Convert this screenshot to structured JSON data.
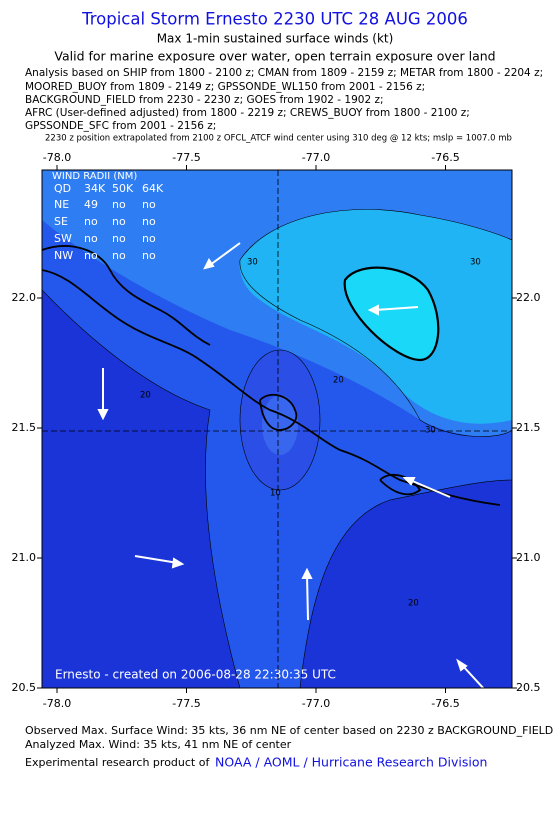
{
  "header": {
    "title": "Tropical Storm Ernesto 2230 UTC 28 AUG 2006",
    "subtitle": "Max 1-min sustained surface winds (kt)",
    "validity": "Valid for marine exposure over water, open terrain exposure over land",
    "sources": [
      "Analysis based on  SHIP from 1800 - 2100 z;  CMAN from 1809 - 2159 z;  METAR from 1800 - 2204 z;",
      "MOORED_BUOY from 1809 - 2149 z;  GPSSONDE_WL150 from 2001 - 2156 z;",
      "BACKGROUND_FIELD from 2230 - 2230 z;  GOES from 1902 - 1902 z;",
      "AFRC (User-defined adjusted) from 1800 - 2219 z;  CREWS_BUOY from 1800 - 2100 z;",
      "GPSSONDE_SFC from 2001 - 2156 z;"
    ],
    "position_note": "2230 z position extrapolated from 2100 z OFCL_ATCF wind center using 310 deg @ 12 kts; mslp = 1007.0 mb"
  },
  "map": {
    "xticks": [
      {
        "value": -78.0,
        "label": "-78.0"
      },
      {
        "value": -77.5,
        "label": "-77.5"
      },
      {
        "value": -77.0,
        "label": "-77.0"
      },
      {
        "value": -76.5,
        "label": "-76.5"
      }
    ],
    "yticks": [
      {
        "value": 22.0,
        "label": "22.0"
      },
      {
        "value": 21.5,
        "label": "21.5"
      },
      {
        "value": 21.0,
        "label": "21.0"
      },
      {
        "value": 20.5,
        "label": "20.5"
      }
    ],
    "wind_radii": {
      "title": "WIND RADII (NM)",
      "header": [
        "QD",
        "34K",
        "50K",
        "64K"
      ],
      "rows": [
        [
          "NE",
          "49",
          "no",
          "no"
        ],
        [
          "SE",
          "no",
          "no",
          "no"
        ],
        [
          "SW",
          "no",
          "no",
          "no"
        ],
        [
          "NW",
          "no",
          "no",
          "no"
        ]
      ]
    },
    "contour_labels": [
      "30",
      "30",
      "30",
      "20",
      "20",
      "20",
      "10"
    ],
    "credit": "Ernesto - created on 2006-08-28 22:30:35 UTC"
  },
  "footer": {
    "observed": "Observed Max. Surface Wind: 35 kts, 36 nm NE of center based on 2230 z BACKGROUND_FIELD",
    "analyzed": "Analyzed Max. Wind: 35 kts, 41 nm NE of center",
    "product": "Experimental research product of",
    "link": "NOAA / AOML / Hurricane Research Division"
  }
}
